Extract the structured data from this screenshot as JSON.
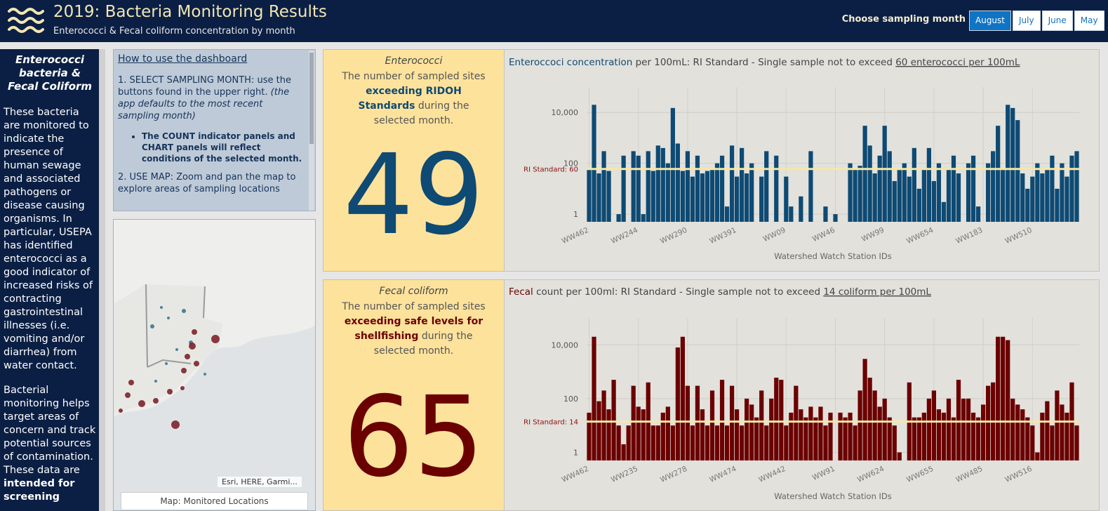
{
  "header": {
    "title": "2019: Bacteria Monitoring Results",
    "subtitle": "Enterococci & Fecal coliform concentration by month",
    "month_prompt": "Choose sampling month",
    "months": [
      "August",
      "July",
      "June",
      "May"
    ],
    "selected_month": "August"
  },
  "sidebar": {
    "heading": "Enterococci bacteria & Fecal Coliform",
    "paragraph_1": "These bacteria are monitored to indicate the presence of human sewage and associated pathogens or disease causing organisms. In particular, USEPA has identified enterococci as a good indicator of increased risks of contracting gastrointestinal illnesses (i.e. vomiting and/or diarrhea) from water contact.",
    "paragraph_2": "Bacterial monitoring helps target areas of concern and track potential sources of contamination. These data are",
    "paragraph_2_bold": "intended for screening"
  },
  "how_to": {
    "title": "How to use the dashboard",
    "step_1_label": "1. SELECT SAMPLING MONTH:",
    "step_1_text": "use the buttons found  in the upper right.",
    "step_1_note": "(the app defaults to the most recent sampling month)",
    "bullet": "The COUNT indicator panels and CHART panels will reflect conditions of the selected month.",
    "step_2_label": "2.  USE MAP:",
    "step_2_text": "Zoom and pan the map to explore areas of sampling locations"
  },
  "map": {
    "attribution": "Esri, HERE, Garmi...",
    "caption": "Map: Monitored Locations"
  },
  "indicators": [
    {
      "label": "Enterococci",
      "desc_before": "The number of sampled sites",
      "desc_bold": "exceeding RIDOH Standards",
      "desc_after": "during the selected month.",
      "value": 49,
      "color": "#0e4a73"
    },
    {
      "label": "Fecal coliform",
      "desc_before": "The number of sampled sites",
      "desc_bold": "exceeding safe levels for shellfishing",
      "desc_after": "during the selected month.",
      "value": 65,
      "color": "#6b0000"
    }
  ],
  "chart_data": [
    {
      "type": "bar",
      "title_colored": "Enteroccoci concentration",
      "title_rest": "per 100mL:  RI Standard - Single sample not to exceed",
      "title_underlined": "60 enterococci per 100mL",
      "x_label": "Watershed Watch Station IDs",
      "log_scale": true,
      "grid": true,
      "color": "#0e4a73",
      "ylim": [
        0.5,
        100000
      ],
      "yticks": [
        1,
        100,
        {
          "value": 10000,
          "label": "10,000"
        }
      ],
      "reference": {
        "value": 60,
        "label": "RI Standard: 60",
        "color": "#f6e7a6"
      },
      "categories": [
        "WW462",
        null,
        null,
        null,
        null,
        null,
        null,
        null,
        null,
        null,
        "WW244",
        null,
        null,
        null,
        null,
        null,
        null,
        null,
        null,
        null,
        "WW290",
        null,
        null,
        null,
        null,
        null,
        null,
        null,
        null,
        null,
        "WW391",
        null,
        null,
        null,
        null,
        null,
        null,
        null,
        null,
        null,
        "WW09",
        null,
        null,
        null,
        null,
        null,
        null,
        null,
        null,
        null,
        "WW46",
        null,
        null,
        null,
        null,
        null,
        null,
        null,
        null,
        null,
        "WW99",
        null,
        null,
        null,
        null,
        null,
        null,
        null,
        null,
        null,
        "WW654",
        null,
        null,
        null,
        null,
        null,
        null,
        null,
        null,
        null,
        "WW183",
        null,
        null,
        null,
        null,
        null,
        null,
        null,
        null,
        null,
        "WW510",
        null,
        null,
        null,
        null,
        null,
        null,
        null,
        null,
        null
      ],
      "values": [
        60,
        20000,
        40,
        300,
        50,
        null,
        1,
        200,
        null,
        300,
        200,
        1,
        300,
        50,
        500,
        400,
        100,
        15000,
        600,
        50,
        300,
        30,
        200,
        40,
        50,
        60,
        100,
        200,
        2,
        500,
        30,
        400,
        40,
        100,
        null,
        30,
        300,
        null,
        200,
        null,
        30,
        2,
        null,
        5,
        null,
        300,
        null,
        null,
        2,
        null,
        1,
        null,
        null,
        100,
        60,
        80,
        3000,
        500,
        40,
        200,
        3000,
        300,
        20,
        60,
        100,
        30,
        400,
        10,
        60,
        400,
        20,
        100,
        3,
        60,
        200,
        40,
        null,
        100,
        200,
        2,
        null,
        100,
        300,
        3000,
        60,
        20000,
        15000,
        5000,
        40,
        10,
        30,
        100,
        40,
        60,
        200,
        10,
        100,
        30,
        200,
        300
      ]
    },
    {
      "type": "bar",
      "title_colored": "Fecal",
      "title_rest": "count per 100ml:  RI Standard - Single sample not to exceed",
      "title_underlined": "14 coliform per 100mL",
      "x_label": "Watershed Watch Station IDs",
      "log_scale": true,
      "grid": true,
      "color": "#6b0000",
      "ylim": [
        0.5,
        100000
      ],
      "yticks": [
        1,
        100,
        {
          "value": 10000,
          "label": "10,000"
        }
      ],
      "reference": {
        "value": 14,
        "label": "RI Standard: 14",
        "color": "#f6e7a6"
      },
      "categories": [
        "WW462",
        null,
        null,
        null,
        null,
        null,
        null,
        null,
        null,
        null,
        "WW235",
        null,
        null,
        null,
        null,
        null,
        null,
        null,
        null,
        null,
        "WW278",
        null,
        null,
        null,
        null,
        null,
        null,
        null,
        null,
        null,
        "WW474",
        null,
        null,
        null,
        null,
        null,
        null,
        null,
        null,
        null,
        "WW442",
        null,
        null,
        null,
        null,
        null,
        null,
        null,
        null,
        null,
        "WW91",
        null,
        null,
        null,
        null,
        null,
        null,
        null,
        null,
        null,
        "WW624",
        null,
        null,
        null,
        null,
        null,
        null,
        null,
        null,
        null,
        "WW655",
        null,
        null,
        null,
        null,
        null,
        null,
        null,
        null,
        null,
        "WW485",
        null,
        null,
        null,
        null,
        null,
        null,
        null,
        null,
        null,
        "WW516",
        null,
        null,
        null,
        null,
        null,
        null,
        null,
        null,
        null
      ],
      "values": [
        30,
        20000,
        80,
        200,
        40,
        500,
        10,
        2,
        10,
        300,
        50,
        40,
        400,
        10,
        10,
        30,
        50,
        10,
        8000,
        20000,
        300,
        10,
        300,
        40,
        10,
        200,
        10,
        500,
        10,
        300,
        40,
        10,
        100,
        60,
        20,
        200,
        10,
        100,
        600,
        500,
        10,
        30,
        300,
        40,
        20,
        50,
        20,
        50,
        10,
        30,
        null,
        30,
        20,
        30,
        10,
        200,
        3000,
        600,
        200,
        50,
        100,
        20,
        10,
        1,
        null,
        400,
        20,
        20,
        30,
        100,
        200,
        40,
        30,
        100,
        20,
        500,
        100,
        100,
        30,
        20,
        60,
        300,
        400,
        20000,
        20000,
        15000,
        100,
        60,
        40,
        20,
        10,
        1,
        30,
        80,
        10,
        200,
        60,
        30,
        400,
        10
      ]
    }
  ]
}
